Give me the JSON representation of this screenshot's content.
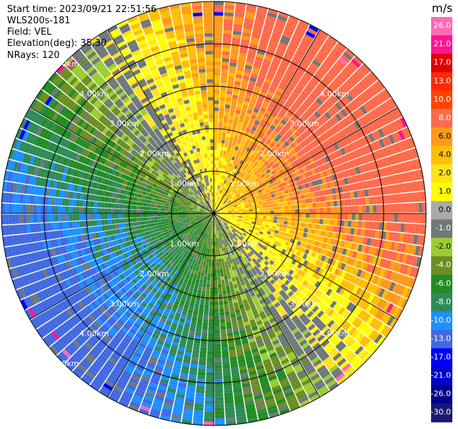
{
  "info": {
    "start_time": "Start time: 2023/09/21 22:51:56",
    "instrument": "WLS200s-181",
    "field": "Field: VEL",
    "elevation": "Elevation(deg): 35.30",
    "nrays": "NRays: 120"
  },
  "range_rings": {
    "labels": [
      "1.00km",
      "2.00km",
      "3.00km",
      "4.00km",
      "5.00km"
    ]
  },
  "colorbar": {
    "unit": "m/s",
    "ticks": [
      "26.0",
      "21.0",
      "17.0",
      "13.0",
      "10.0",
      "8.0",
      "6.0",
      "4.0",
      "2.0",
      "1.0",
      "0.0",
      "-1.0",
      "-2.0",
      "-4.0",
      "-6.0",
      "-8.0",
      "-10.0",
      "-13.0",
      "-17.0",
      "-21.0",
      "-26.0",
      "-30.0"
    ],
    "colors": [
      "#ff69b4",
      "#ff1493",
      "#e00000",
      "#ff2a00",
      "#ff4500",
      "#ff6a4a",
      "#ff9a1a",
      "#ffbf00",
      "#ffe21a",
      "#ffff00",
      "#a9a9a9",
      "#707878",
      "#9acd32",
      "#6b8e23",
      "#228b22",
      "#2e8b57",
      "#1e90ff",
      "#4169e1",
      "#0000ff",
      "#0000cd",
      "#00008b",
      "#191970"
    ]
  }
}
